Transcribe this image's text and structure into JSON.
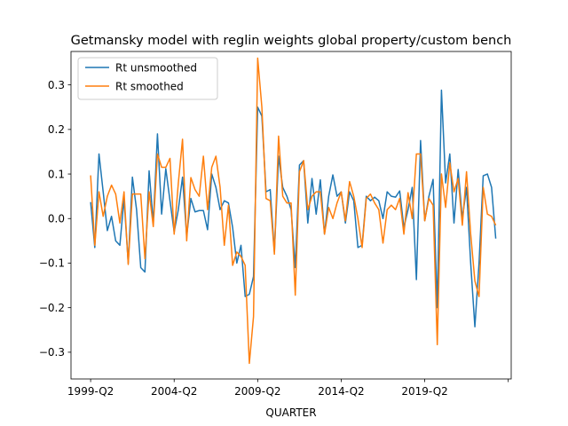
{
  "chart_data": {
    "type": "line",
    "title": "Getmansky model with reglin weights global property/custom bench",
    "xlabel": "QUARTER",
    "ylabel": "",
    "xlim": [
      -4.7,
      100.7
    ],
    "ylim": [
      -0.36,
      0.375
    ],
    "x_tick_positions": [
      0,
      20,
      40,
      60,
      80,
      100
    ],
    "x_tick_labels": [
      "1999-Q2",
      "2004-Q2",
      "2009-Q2",
      "2014-Q2",
      "2019-Q2",
      ""
    ],
    "y_ticks": [
      -0.3,
      -0.2,
      -0.1,
      0.0,
      0.1,
      0.2,
      0.3
    ],
    "y_tick_labels": [
      "−0.3",
      "−0.2",
      "−0.1",
      "0.0",
      "0.1",
      "0.2",
      "0.3"
    ],
    "grid": false,
    "legend": "upper left",
    "series": [
      {
        "name": "Rt unsmoothed",
        "color": "#1f77b4",
        "values": [
          0.037,
          -0.065,
          0.145,
          0.06,
          -0.027,
          0.005,
          -0.05,
          -0.06,
          0.045,
          -0.1,
          0.093,
          0.02,
          -0.11,
          -0.12,
          0.107,
          -0.01,
          0.19,
          0.01,
          0.112,
          0.04,
          -0.03,
          0.02,
          0.093,
          -0.04,
          0.045,
          0.015,
          0.018,
          0.018,
          -0.025,
          0.1,
          0.07,
          0.02,
          0.04,
          0.035,
          -0.02,
          -0.1,
          -0.06,
          -0.175,
          -0.17,
          -0.13,
          0.25,
          0.23,
          0.06,
          0.065,
          -0.075,
          0.14,
          0.07,
          0.05,
          0.02,
          -0.11,
          0.12,
          0.13,
          -0.01,
          0.09,
          0.01,
          0.087,
          -0.035,
          0.05,
          0.098,
          0.05,
          0.06,
          -0.01,
          0.06,
          0.04,
          -0.065,
          -0.06,
          0.05,
          0.04,
          0.048,
          0.04,
          0.0,
          0.06,
          0.05,
          0.048,
          0.062,
          -0.02,
          0.02,
          0.07,
          -0.137,
          0.175,
          -0.005,
          0.05,
          0.088,
          -0.2,
          0.288,
          0.08,
          0.145,
          -0.01,
          0.11,
          0.0,
          0.07,
          -0.1,
          -0.243,
          -0.1,
          0.096,
          0.1,
          0.07,
          -0.045
        ],
        "note_x_start": 0
      },
      {
        "name": "Rt smoothed",
        "color": "#ff7f0e",
        "values": [
          0.097,
          -0.06,
          0.06,
          0.005,
          0.05,
          0.075,
          0.055,
          -0.01,
          0.06,
          -0.103,
          0.055,
          0.055,
          0.055,
          -0.09,
          0.06,
          -0.018,
          0.145,
          0.115,
          0.115,
          0.135,
          -0.035,
          0.08,
          0.178,
          -0.05,
          0.092,
          0.065,
          0.05,
          0.14,
          0.02,
          0.115,
          0.14,
          0.07,
          -0.06,
          0.03,
          -0.105,
          -0.075,
          -0.085,
          -0.105,
          -0.325,
          -0.22,
          0.36,
          0.25,
          0.045,
          0.04,
          -0.08,
          0.185,
          0.05,
          0.035,
          0.035,
          -0.172,
          0.105,
          0.13,
          0.02,
          0.05,
          0.06,
          0.06,
          -0.035,
          0.025,
          0.0,
          0.035,
          0.06,
          -0.005,
          0.083,
          0.05,
          0.0,
          -0.065,
          0.045,
          0.055,
          0.035,
          0.02,
          -0.055,
          0.02,
          0.03,
          0.02,
          0.045,
          -0.035,
          0.058,
          0.0,
          0.145,
          0.145,
          -0.005,
          0.045,
          0.03,
          -0.283,
          0.1,
          0.025,
          0.125,
          0.06,
          0.09,
          -0.015,
          0.105,
          -0.035,
          -0.14,
          -0.175,
          0.07,
          0.01,
          0.005,
          -0.015
        ]
      }
    ]
  }
}
